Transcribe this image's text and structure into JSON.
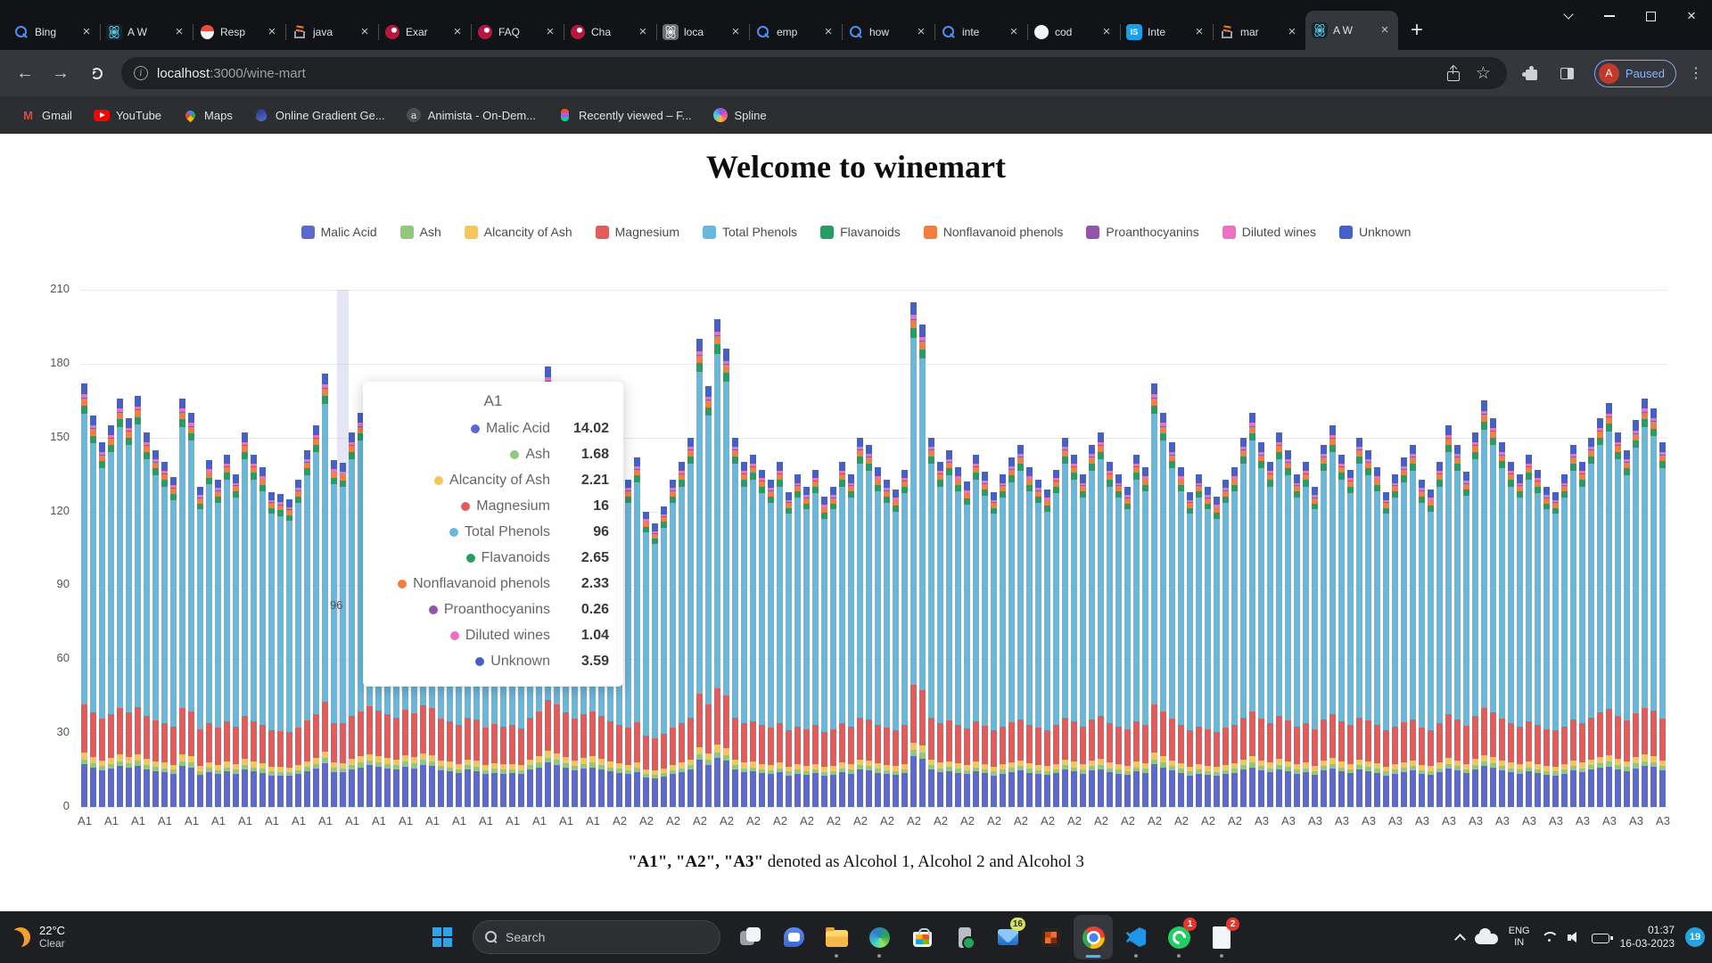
{
  "browser": {
    "tabs": [
      {
        "title": "Bing",
        "icon": "fav-search",
        "icon_name": "search-favicon"
      },
      {
        "title": "A W",
        "icon": "fav-react",
        "icon_name": "react-favicon"
      },
      {
        "title": "Resp",
        "icon": "fav-shield",
        "icon_name": "shield-favicon"
      },
      {
        "title": "java",
        "icon": "fav-sostack",
        "icon_name": "stackoverflow-favicon"
      },
      {
        "title": "Exar",
        "icon": "fav-redball",
        "icon_name": "red-logo-favicon"
      },
      {
        "title": "FAQ",
        "icon": "fav-redball",
        "icon_name": "red-logo-favicon"
      },
      {
        "title": "Cha",
        "icon": "fav-redball",
        "icon_name": "red-logo-favicon"
      },
      {
        "title": "loca",
        "icon": "fav-react-grey",
        "icon_name": "react-grey-favicon"
      },
      {
        "title": "emp",
        "icon": "fav-search",
        "icon_name": "search-favicon"
      },
      {
        "title": "how",
        "icon": "fav-search",
        "icon_name": "search-favicon"
      },
      {
        "title": "inte",
        "icon": "fav-search",
        "icon_name": "search-favicon"
      },
      {
        "title": "cod",
        "icon": "fav-github",
        "icon_name": "github-favicon"
      },
      {
        "title": "Inte",
        "icon": "fav-isbox",
        "icon_name": "interviewbit-favicon"
      },
      {
        "title": "mar",
        "icon": "fav-sostack",
        "icon_name": "stackoverflow-favicon"
      },
      {
        "title": "A W",
        "icon": "fav-react",
        "icon_name": "react-favicon",
        "active": true
      }
    ],
    "new_tab_label": "+",
    "address": {
      "host": "localhost",
      "rest": ":3000/wine-mart"
    },
    "profile": {
      "initial": "A",
      "status": "Paused"
    },
    "bookmarks": [
      {
        "label": "Gmail",
        "icon": "bi-gmail",
        "icon_name": "gmail-icon"
      },
      {
        "label": "YouTube",
        "icon": "bi-youtube",
        "icon_name": "youtube-icon"
      },
      {
        "label": "Maps",
        "icon": "bi-maps",
        "icon_name": "maps-icon"
      },
      {
        "label": "Online Gradient Ge...",
        "icon": "bi-gradient",
        "icon_name": "gradient-site-icon"
      },
      {
        "label": "Animista - On-Dem...",
        "icon": "bi-animista",
        "icon_name": "animista-icon"
      },
      {
        "label": "Recently viewed – F...",
        "icon": "bi-figma",
        "icon_name": "figma-icon"
      },
      {
        "label": "Spline",
        "icon": "bi-spline",
        "icon_name": "spline-icon"
      }
    ]
  },
  "page": {
    "title": "Welcome to winemart",
    "caption_bold": "\"A1\", \"A2\", \"A3\"",
    "caption_rest": " denoted as Alcohol 1, Alcohol 2 and Alcohol 3"
  },
  "chart_data": {
    "type": "bar",
    "stacked": true,
    "title": "Welcome to winemart",
    "xlabel": "",
    "ylabel": "",
    "ylim": [
      0,
      210
    ],
    "y_ticks": [
      0,
      30,
      60,
      90,
      120,
      150,
      180,
      210
    ],
    "grid": "horizontal",
    "legend_position": "top",
    "series": [
      {
        "name": "Malic Acid",
        "color": "#5a6acf"
      },
      {
        "name": "Ash",
        "color": "#8fc97c"
      },
      {
        "name": "Alcancity of Ash",
        "color": "#f6c656"
      },
      {
        "name": "Magnesium",
        "color": "#e25c5c"
      },
      {
        "name": "Total Phenols",
        "color": "#68b8dc"
      },
      {
        "name": "Flavanoids",
        "color": "#259d63"
      },
      {
        "name": "Nonflavanoid phenols",
        "color": "#f57d3d"
      },
      {
        "name": "Proanthocyanins",
        "color": "#9354ab"
      },
      {
        "name": "Diluted wines",
        "color": "#ef6fc5"
      },
      {
        "name": "Unknown",
        "color": "#4561c9"
      }
    ],
    "groups": [
      {
        "label": "A1",
        "count": 59
      },
      {
        "label": "A2",
        "count": 71
      },
      {
        "label": "A3",
        "count": 48
      }
    ],
    "x_label_every": 3,
    "totals": [
      172,
      159,
      148,
      155,
      166,
      158,
      167,
      152,
      145,
      140,
      134,
      166,
      160,
      130,
      141,
      133,
      143,
      135,
      152,
      143,
      138,
      128,
      127,
      125,
      133,
      145,
      155,
      176,
      141,
      139.8,
      152,
      160,
      168,
      162,
      155,
      150,
      163,
      157,
      170,
      165,
      148,
      143,
      137,
      150,
      146,
      133,
      139,
      135,
      137,
      132,
      150,
      160,
      179,
      171,
      158,
      148,
      155,
      160,
      152,
      143,
      138,
      133,
      142,
      120,
      115,
      122,
      133,
      140,
      150,
      190,
      171,
      198,
      186,
      150,
      140,
      143,
      137,
      133,
      140,
      128,
      135,
      130,
      137,
      126,
      130,
      140,
      135,
      150,
      147,
      138,
      133,
      129,
      137,
      205,
      196,
      150,
      140,
      145,
      138,
      132,
      143,
      136,
      128,
      135,
      142,
      147,
      138,
      133,
      129,
      137,
      150,
      143,
      135,
      147,
      152,
      140,
      135,
      130,
      143,
      138,
      172,
      160,
      148,
      138,
      128,
      135,
      130,
      126,
      133,
      138,
      150,
      160,
      148,
      140,
      152,
      145,
      135,
      140,
      130,
      147,
      155,
      143,
      137,
      150,
      145,
      138,
      128,
      135,
      142,
      147,
      133,
      129,
      140,
      155,
      147,
      136,
      152,
      165,
      158,
      148,
      140,
      135,
      143,
      137,
      130,
      128,
      135,
      147,
      140,
      150,
      158,
      164,
      152,
      145,
      157,
      166,
      162,
      148
    ],
    "tooltip": {
      "title": "A1",
      "hovered_index": 29,
      "hovered_value_label": "96",
      "rows": [
        {
          "name": "Malic Acid",
          "value": "14.02",
          "color": "#5a6acf"
        },
        {
          "name": "Ash",
          "value": "1.68",
          "color": "#8fc97c"
        },
        {
          "name": "Alcancity of Ash",
          "value": "2.21",
          "color": "#f6c656"
        },
        {
          "name": "Magnesium",
          "value": "16",
          "color": "#e25c5c"
        },
        {
          "name": "Total Phenols",
          "value": "96",
          "color": "#68b8dc"
        },
        {
          "name": "Flavanoids",
          "value": "2.65",
          "color": "#259d63"
        },
        {
          "name": "Nonflavanoid phenols",
          "value": "2.33",
          "color": "#f57d3d"
        },
        {
          "name": "Proanthocyanins",
          "value": "0.26",
          "color": "#9354ab"
        },
        {
          "name": "Diluted wines",
          "value": "1.04",
          "color": "#ef6fc5"
        },
        {
          "name": "Unknown",
          "value": "3.59",
          "color": "#4561c9"
        }
      ]
    }
  },
  "taskbar": {
    "weather": {
      "temp": "22°C",
      "desc": "Clear"
    },
    "search_placeholder": "Search",
    "apps": [
      {
        "name": "task-view",
        "icon": "ic-taskview"
      },
      {
        "name": "teams-chat",
        "icon": "ic-chat"
      },
      {
        "name": "file-explorer",
        "icon": "ic-folder",
        "dot": true
      },
      {
        "name": "edge",
        "icon": "ic-edge",
        "dot": true
      },
      {
        "name": "microsoft-store",
        "icon": "ic-store"
      },
      {
        "name": "phone-link",
        "icon": "ic-phone"
      },
      {
        "name": "mail",
        "icon": "ic-mail",
        "badge": "16",
        "badge_color": "yellow"
      },
      {
        "name": "widgets-app",
        "icon": "ic-grid"
      },
      {
        "name": "chrome",
        "icon": "ic-chrome",
        "active": true
      },
      {
        "name": "vscode",
        "icon": "ic-vscode",
        "dot": true
      },
      {
        "name": "whatsapp",
        "icon": "ic-whatsapp",
        "badge": "1",
        "badge_color": "red",
        "dot": true
      },
      {
        "name": "sticky-notes",
        "icon": "ic-note",
        "badge": "2",
        "badge_color": "red",
        "dot": true
      }
    ],
    "lang_line1": "ENG",
    "lang_line2": "IN",
    "time": "01:37",
    "date": "16-03-2023",
    "notification_count": "19"
  }
}
